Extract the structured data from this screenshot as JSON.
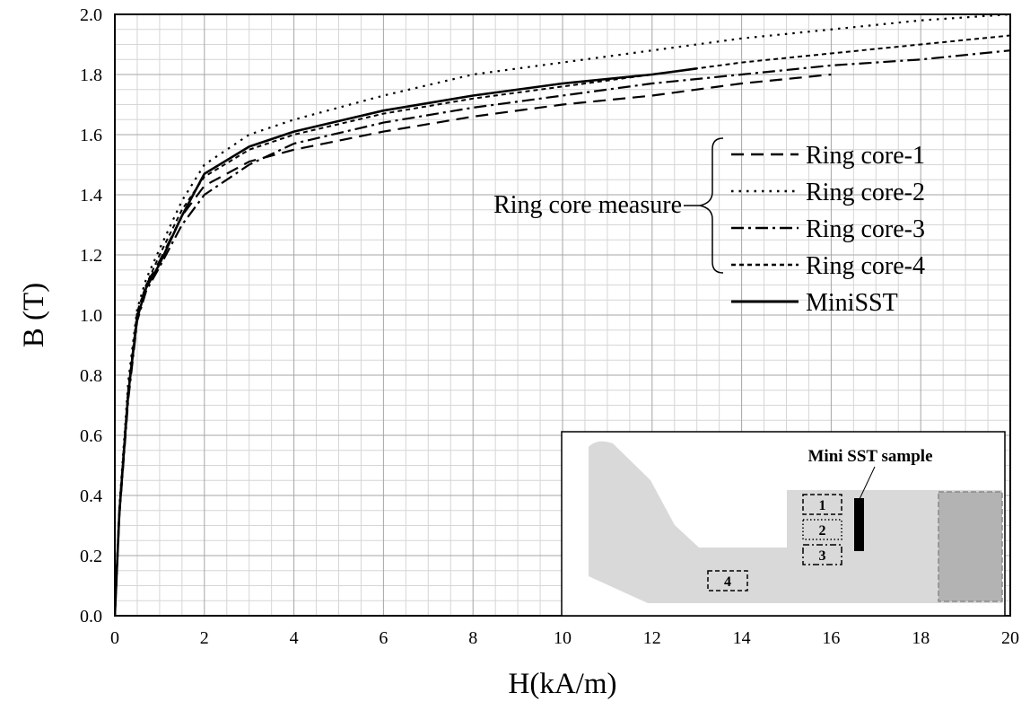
{
  "chart_data": {
    "type": "line",
    "title": "",
    "xlabel": "H(kA/m)",
    "ylabel": "B (T)",
    "xlim": [
      0,
      20
    ],
    "ylim": [
      0,
      2.0
    ],
    "x_ticks": [
      "0",
      "2",
      "4",
      "6",
      "8",
      "10",
      "12",
      "14",
      "16",
      "18",
      "20"
    ],
    "y_ticks": [
      "0.0",
      "0.2",
      "0.4",
      "0.6",
      "0.8",
      "1.0",
      "1.2",
      "1.4",
      "1.6",
      "1.8",
      "2.0"
    ],
    "grid": true,
    "legend_group_label": "Ring core measure",
    "series": [
      {
        "name": "Ring core-1",
        "style": "dash",
        "x": [
          0,
          0.1,
          0.3,
          0.5,
          0.7,
          1.0,
          1.5,
          2.0,
          3.0,
          4.0,
          6.0,
          8.0,
          10.0,
          12.0,
          14.0,
          16.0
        ],
        "y": [
          0,
          0.35,
          0.75,
          1.0,
          1.1,
          1.18,
          1.33,
          1.43,
          1.51,
          1.55,
          1.61,
          1.66,
          1.7,
          1.73,
          1.77,
          1.8
        ]
      },
      {
        "name": "Ring core-2",
        "style": "dot",
        "x": [
          0,
          0.1,
          0.3,
          0.5,
          0.7,
          1.0,
          1.5,
          2.0,
          3.0,
          4.0,
          6.0,
          8.0,
          10.0,
          12.0,
          14.0,
          16.0,
          18.0,
          20.0
        ],
        "y": [
          0,
          0.36,
          0.78,
          1.02,
          1.12,
          1.22,
          1.38,
          1.5,
          1.6,
          1.65,
          1.73,
          1.8,
          1.84,
          1.88,
          1.92,
          1.95,
          1.98,
          2.0
        ]
      },
      {
        "name": "Ring core-3",
        "style": "dashdot",
        "x": [
          0,
          0.1,
          0.3,
          0.5,
          0.7,
          1.0,
          1.5,
          2.0,
          3.0,
          4.0,
          6.0,
          8.0,
          10.0,
          12.0,
          14.0,
          16.0,
          18.0,
          20.0
        ],
        "y": [
          0,
          0.33,
          0.72,
          0.98,
          1.08,
          1.16,
          1.3,
          1.4,
          1.5,
          1.57,
          1.64,
          1.69,
          1.73,
          1.77,
          1.8,
          1.83,
          1.85,
          1.88
        ]
      },
      {
        "name": "Ring core-4",
        "style": "shortdash",
        "x": [
          0,
          0.1,
          0.3,
          0.5,
          0.7,
          1.0,
          1.5,
          2.0,
          3.0,
          4.0,
          6.0,
          8.0,
          10.0,
          12.0,
          14.0,
          16.0,
          18.0,
          20.0
        ],
        "y": [
          0,
          0.35,
          0.76,
          1.01,
          1.1,
          1.2,
          1.35,
          1.46,
          1.55,
          1.6,
          1.67,
          1.72,
          1.76,
          1.8,
          1.84,
          1.87,
          1.9,
          1.93
        ]
      },
      {
        "name": "MiniSST",
        "style": "solid",
        "x": [
          0,
          0.1,
          0.3,
          0.5,
          0.7,
          1.0,
          1.5,
          2.0,
          3.0,
          4.0,
          6.0,
          8.0,
          10.0,
          12.0,
          13.0
        ],
        "y": [
          0,
          0.34,
          0.74,
          0.99,
          1.09,
          1.17,
          1.33,
          1.47,
          1.56,
          1.61,
          1.68,
          1.73,
          1.77,
          1.8,
          1.82
        ]
      }
    ],
    "inset": {
      "title": "Mini SST sample",
      "position_labels": [
        "1",
        "2",
        "3",
        "4"
      ]
    }
  },
  "colors": {
    "line": "#000000",
    "grid_major": "#a6a6a6",
    "grid_minor": "#d6d6d6",
    "inset_body": "#d9d9d9",
    "inset_block": "#b3b3b3"
  }
}
